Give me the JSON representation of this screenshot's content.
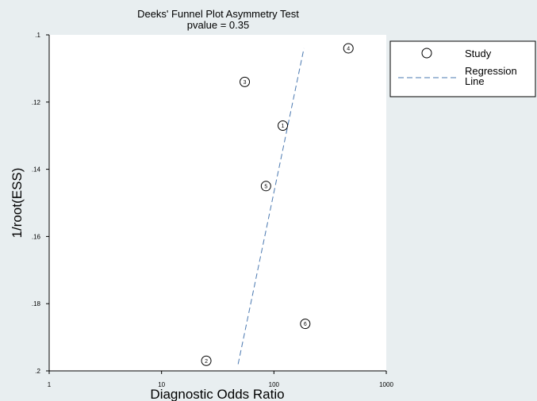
{
  "chart_data": {
    "type": "scatter",
    "title": "Deeks' Funnel Plot Asymmetry Test",
    "subtitle": "pvalue =   0.35",
    "xlabel": "Diagnostic Odds Ratio",
    "ylabel": "1/root(ESS)",
    "x_scale": "log",
    "xlim": [
      1,
      1000
    ],
    "ylim": [
      0.1,
      0.2
    ],
    "y_reversed": true,
    "x_ticks": [
      1,
      10,
      100,
      1000
    ],
    "x_tick_labels": [
      "1",
      "10",
      "100",
      "1000"
    ],
    "y_ticks": [
      0.1,
      0.12,
      0.14,
      0.16,
      0.18,
      0.2
    ],
    "y_tick_labels": [
      ".1",
      ".12",
      ".14",
      ".16",
      ".18",
      ".2"
    ],
    "grid": false,
    "legend_position": "right",
    "series": [
      {
        "name": "Study",
        "marker": "circle",
        "points": [
          {
            "label": "1",
            "x": 120,
            "y": 0.127
          },
          {
            "label": "2",
            "x": 25,
            "y": 0.197
          },
          {
            "label": "3",
            "x": 55,
            "y": 0.114
          },
          {
            "label": "4",
            "x": 460,
            "y": 0.104
          },
          {
            "label": "5",
            "x": 85,
            "y": 0.145
          },
          {
            "label": "6",
            "x": 190,
            "y": 0.186
          }
        ]
      },
      {
        "name": "Regression Line",
        "style": "dashed",
        "color": "#4a78b0",
        "points": [
          {
            "x": 48,
            "y": 0.198
          },
          {
            "x": 185,
            "y": 0.104
          }
        ]
      }
    ],
    "legend": {
      "study_label": "Study",
      "regression_label_line1": "Regression",
      "regression_label_line2": "Line"
    }
  }
}
